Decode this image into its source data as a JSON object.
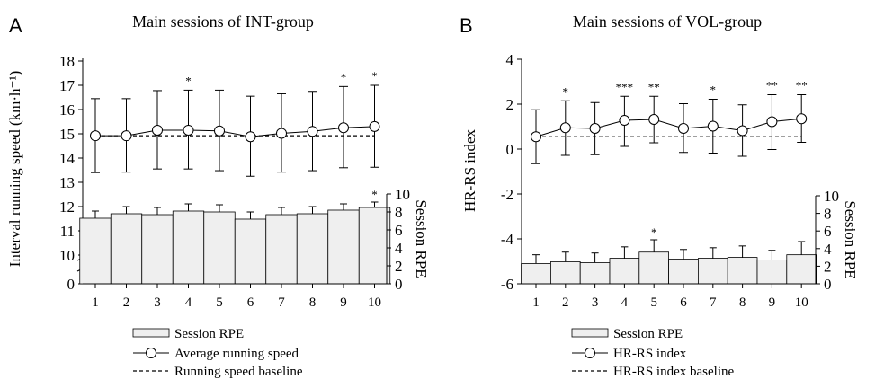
{
  "chart_data": [
    {
      "panel_letter": "A",
      "type": "bar",
      "title": "Main sessions of INT-group",
      "x": [
        "1",
        "2",
        "3",
        "4",
        "5",
        "6",
        "7",
        "8",
        "9",
        "10"
      ],
      "left_axis": {
        "label": "Interval running speed (km·h⁻¹)",
        "ticks": [
          "18",
          "17",
          "16",
          "15",
          "14",
          "13",
          "12",
          "11",
          "10",
          "0"
        ],
        "broken": true
      },
      "right_axis": {
        "label": "Session RPE",
        "ticks": [
          "10",
          "8",
          "6",
          "4",
          "2",
          "0"
        ],
        "ylim": [
          0,
          10
        ]
      },
      "series": [
        {
          "name": "Average running speed",
          "kind": "line-with-open-circles",
          "values": [
            14.92,
            14.92,
            15.15,
            15.15,
            15.12,
            14.88,
            15.02,
            15.1,
            15.25,
            15.3
          ],
          "error_upper": [
            16.45,
            16.45,
            16.78,
            16.8,
            16.8,
            16.55,
            16.65,
            16.75,
            16.95,
            17.0
          ],
          "error_lower": [
            13.4,
            13.42,
            13.55,
            13.55,
            13.48,
            13.25,
            13.42,
            13.48,
            13.6,
            13.62
          ]
        },
        {
          "name": "Running speed baseline",
          "kind": "dashed-line",
          "value": 14.92
        },
        {
          "name": "Session RPE",
          "kind": "bar",
          "axis": "right",
          "values": [
            7.3,
            7.8,
            7.7,
            8.1,
            8.0,
            7.2,
            7.7,
            7.8,
            8.2,
            8.5
          ],
          "error_upper": [
            8.1,
            8.6,
            8.5,
            8.9,
            8.8,
            8.0,
            8.5,
            8.6,
            8.9,
            9.1
          ]
        }
      ],
      "significance": [
        "",
        "",
        "",
        "*",
        "",
        "",
        "",
        "",
        "*",
        "*"
      ],
      "rpe_significance": [
        "",
        "",
        "",
        "",
        "",
        "",
        "",
        "",
        "",
        "*"
      ],
      "legend": [
        "Session RPE",
        "Average running speed",
        "Running speed baseline"
      ]
    },
    {
      "panel_letter": "B",
      "type": "bar",
      "title": "Main sessions of VOL-group",
      "x": [
        "1",
        "2",
        "3",
        "4",
        "5",
        "6",
        "7",
        "8",
        "9",
        "10"
      ],
      "left_axis": {
        "label": "HR-RS index",
        "ticks": [
          "4",
          "2",
          "0",
          "-2",
          "-4",
          "-6"
        ],
        "ylim": [
          -6,
          4
        ]
      },
      "right_axis": {
        "label": "Session RPE",
        "ticks": [
          "10",
          "8",
          "6",
          "4",
          "2",
          "0"
        ],
        "ylim": [
          0,
          10
        ]
      },
      "series": [
        {
          "name": "HR-RS index",
          "kind": "line-with-open-circles",
          "values": [
            0.55,
            0.95,
            0.92,
            1.28,
            1.32,
            0.92,
            1.02,
            0.82,
            1.22,
            1.35
          ],
          "error_upper": [
            1.75,
            2.15,
            2.07,
            2.35,
            2.35,
            2.02,
            2.22,
            1.97,
            2.42,
            2.42
          ],
          "error_lower": [
            -0.65,
            -0.28,
            -0.25,
            0.12,
            0.28,
            -0.15,
            -0.18,
            -0.32,
            -0.02,
            0.3
          ]
        },
        {
          "name": "HR-RS index baseline",
          "kind": "dashed-line",
          "value": 0.55
        },
        {
          "name": "Session RPE",
          "kind": "bar",
          "axis": "right",
          "values": [
            2.3,
            2.5,
            2.4,
            2.9,
            3.6,
            2.8,
            2.9,
            3.0,
            2.7,
            3.3
          ],
          "error_upper": [
            3.3,
            3.6,
            3.5,
            4.2,
            5.0,
            3.9,
            4.1,
            4.3,
            3.8,
            4.8
          ]
        }
      ],
      "significance": [
        "",
        "*",
        "",
        "***",
        "**",
        "",
        "*",
        "",
        "**",
        "**"
      ],
      "rpe_significance": [
        "",
        "",
        "",
        "",
        "*",
        "",
        "",
        "",
        "",
        ""
      ],
      "legend": [
        "Session RPE",
        "HR-RS index",
        "HR-RS index baseline"
      ]
    }
  ]
}
